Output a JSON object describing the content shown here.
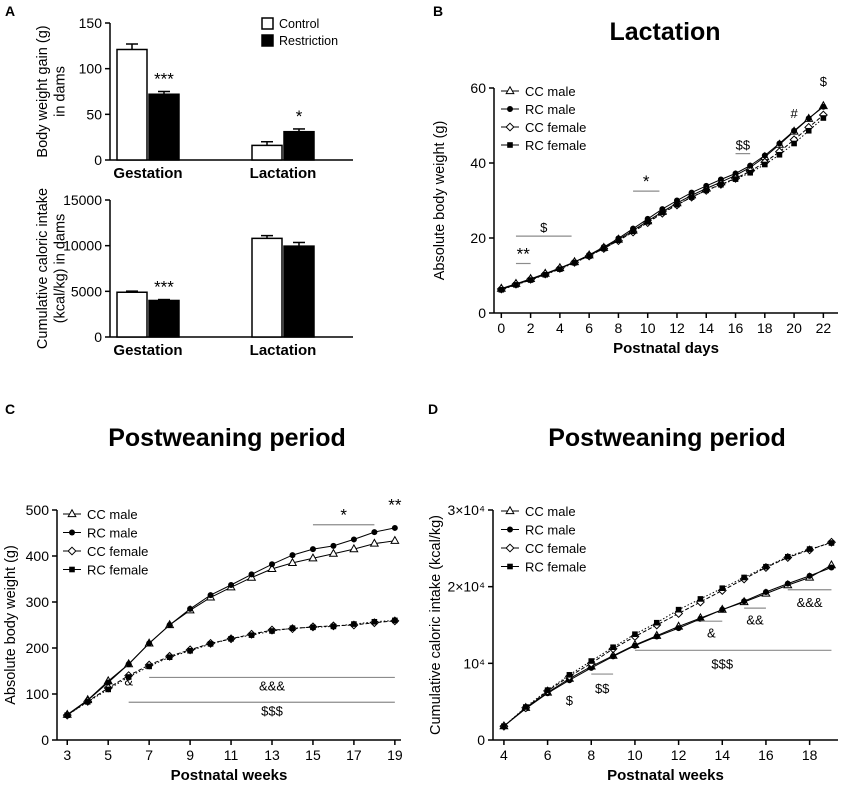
{
  "panels": {
    "a": "A",
    "b": "B",
    "c": "C",
    "d": "D"
  },
  "titles": {
    "b": "Lactation",
    "c": "Postweaning period",
    "d": "Postweaning period"
  },
  "colors": {
    "axis": "#000000",
    "fill_control": "#ffffff",
    "fill_restriction": "#000000",
    "sig_line": "#8c8c8c"
  },
  "chart_data": [
    {
      "id": "a_top",
      "type": "bar",
      "categories": [
        "Gestation",
        "Lactation"
      ],
      "series": [
        {
          "name": "Control",
          "values": [
            121,
            16
          ],
          "errors": [
            6,
            4
          ]
        },
        {
          "name": "Restriction",
          "values": [
            72,
            31
          ],
          "errors": [
            3,
            3
          ]
        }
      ],
      "ylabel": "Body weight gain (g)",
      "ylabel2": "in dams",
      "ylim": [
        0,
        150
      ],
      "yticks": [
        "0",
        "50",
        "100",
        "150"
      ],
      "annotations": [
        {
          "category": 0,
          "series": 1,
          "text": "***"
        },
        {
          "category": 1,
          "series": 1,
          "text": "*"
        }
      ],
      "legend": [
        "Control",
        "Restriction"
      ],
      "legend_position": "top-right"
    },
    {
      "id": "a_bottom",
      "type": "bar",
      "categories": [
        "Gestation",
        "Lactation"
      ],
      "series": [
        {
          "name": "Control",
          "values": [
            4900,
            10800
          ],
          "errors": [
            120,
            300
          ]
        },
        {
          "name": "Restriction",
          "values": [
            4000,
            9950
          ],
          "errors": [
            100,
            400
          ]
        }
      ],
      "ylabel": "Cumulative caloric intake",
      "ylabel2": "(kcal/kg) in dams",
      "ylim": [
        0,
        15000
      ],
      "yticks": [
        "0",
        "5000",
        "10000",
        "15000"
      ],
      "annotations": [
        {
          "category": 0,
          "series": 1,
          "text": "***"
        }
      ]
    },
    {
      "id": "b",
      "type": "line",
      "title": "Lactation",
      "xlabel": "Postnatal days",
      "ylabel": "Absolute body weight (g)",
      "xlim": [
        -0.5,
        23
      ],
      "ylim": [
        0,
        60
      ],
      "xticks": [
        "0",
        "2",
        "4",
        "6",
        "8",
        "10",
        "12",
        "14",
        "16",
        "18",
        "20",
        "22"
      ],
      "yticks": [
        "0",
        "20",
        "40",
        "60"
      ],
      "x": [
        0,
        1,
        2,
        3,
        4,
        5,
        6,
        7,
        8,
        9,
        10,
        11,
        12,
        13,
        14,
        15,
        16,
        17,
        18,
        19,
        20,
        21,
        22
      ],
      "series": [
        {
          "name": "CC male",
          "marker": "triangle-open",
          "dash": "solid",
          "values": [
            6.5,
            7.8,
            9.1,
            10.5,
            12.0,
            13.6,
            15.4,
            17.4,
            19.6,
            22.0,
            24.5,
            27.0,
            29.3,
            31.4,
            33.2,
            34.9,
            36.7,
            38.8,
            41.6,
            44.9,
            48.4,
            51.8,
            55.2
          ]
        },
        {
          "name": "RC male",
          "marker": "circle-filled",
          "dash": "solid",
          "values": [
            6.3,
            7.6,
            8.9,
            10.3,
            11.9,
            13.6,
            15.5,
            17.6,
            19.9,
            22.5,
            25.1,
            27.7,
            30.0,
            32.1,
            33.9,
            35.6,
            37.2,
            39.3,
            42.0,
            45.2,
            48.6,
            51.9,
            55.0
          ]
        },
        {
          "name": "CC female",
          "marker": "diamond-open",
          "dash": "dashed",
          "values": [
            6.4,
            7.7,
            9.0,
            10.4,
            11.9,
            13.5,
            15.2,
            17.2,
            19.3,
            21.6,
            24.1,
            26.6,
            28.8,
            30.9,
            32.7,
            34.3,
            35.9,
            37.8,
            40.2,
            43.0,
            46.2,
            49.5,
            52.8
          ]
        },
        {
          "name": "RC female",
          "marker": "square-filled",
          "dash": "dotted",
          "values": [
            6.2,
            7.5,
            8.8,
            10.2,
            11.7,
            13.4,
            15.2,
            17.2,
            19.4,
            21.8,
            24.3,
            26.8,
            28.9,
            30.9,
            32.7,
            34.2,
            35.7,
            37.4,
            39.6,
            42.2,
            45.2,
            48.6,
            52.0
          ]
        }
      ],
      "annotations": [
        {
          "text": "**",
          "x1": 1,
          "x2": 2,
          "y": 13.2
        },
        {
          "text": "$",
          "x1": 1,
          "x2": 4.8,
          "y": 20.5
        },
        {
          "text": "*",
          "x1": 9,
          "x2": 10.8,
          "y": 32.5
        },
        {
          "text": "$$",
          "x1": 16,
          "x2": 17,
          "y": 42.5
        },
        {
          "text": "#",
          "x1": 20,
          "x2": 20,
          "y": 51,
          "noline": true
        },
        {
          "text": "$",
          "x1": 22,
          "x2": 22,
          "y": 59.5,
          "noline": true
        }
      ],
      "legend": [
        "CC male",
        "RC male",
        "CC female",
        "RC female"
      ],
      "legend_position": "top-left"
    },
    {
      "id": "c",
      "type": "line",
      "title": "Postweaning period",
      "xlabel": "Postnatal weeks",
      "ylabel": "Absolute body weight (g)",
      "xlim": [
        2.5,
        19.3
      ],
      "ylim": [
        0,
        500
      ],
      "xticks": [
        "3",
        "5",
        "7",
        "9",
        "11",
        "13",
        "15",
        "17",
        "19"
      ],
      "yticks": [
        "0",
        "100",
        "200",
        "300",
        "400",
        "500"
      ],
      "x": [
        3,
        4,
        5,
        6,
        7,
        8,
        9,
        10,
        11,
        12,
        13,
        14,
        15,
        16,
        17,
        18,
        19
      ],
      "series": [
        {
          "name": "CC male",
          "marker": "triangle-open",
          "dash": "solid",
          "values": [
            55,
            87,
            128,
            165,
            210,
            250,
            282,
            310,
            332,
            353,
            372,
            385,
            395,
            405,
            415,
            427,
            433
          ]
        },
        {
          "name": "RC male",
          "marker": "circle-filled",
          "dash": "solid",
          "values": [
            54,
            86,
            125,
            165,
            210,
            250,
            285,
            315,
            337,
            360,
            382,
            402,
            415,
            422,
            436,
            452,
            461
          ]
        },
        {
          "name": "CC female",
          "marker": "diamond-open",
          "dash": "dashed",
          "values": [
            54,
            84,
            113,
            140,
            163,
            182,
            196,
            210,
            220,
            230,
            239,
            242,
            246,
            248,
            250,
            255,
            259
          ]
        },
        {
          "name": "RC female",
          "marker": "square-filled",
          "dash": "dotted",
          "values": [
            54,
            83,
            110,
            137,
            160,
            180,
            194,
            209,
            220,
            228,
            237,
            243,
            245,
            247,
            252,
            257,
            260
          ]
        }
      ],
      "annotations": [
        {
          "text": "*",
          "x1": 15,
          "x2": 18,
          "y": 468
        },
        {
          "text": "**",
          "x1": 19,
          "x2": 19,
          "y": 490,
          "noline": true
        },
        {
          "text": "&",
          "x1": 6,
          "x2": 6,
          "y": 110,
          "noline": true
        },
        {
          "text": "&&&",
          "x1": 7,
          "x2": 19,
          "y": 136,
          "label_x": 13,
          "label_y": 118
        },
        {
          "text": "$$$",
          "x1": 6,
          "x2": 19,
          "y": 82,
          "label_x": 13,
          "label_y": 64
        }
      ],
      "legend": [
        "CC male",
        "RC male",
        "CC female",
        "RC female"
      ],
      "legend_position": "top-left"
    },
    {
      "id": "d",
      "type": "line",
      "title": "Postweaning period",
      "xlabel": "Postnatal weeks",
      "ylabel": "Cumulative caloric intake (kcal/kg)",
      "xlim": [
        3.5,
        19.3
      ],
      "ylim": [
        0,
        30000
      ],
      "xticks": [
        "4",
        "6",
        "8",
        "10",
        "12",
        "14",
        "16",
        "18"
      ],
      "yticks": [
        "0",
        "10⁴",
        "2×10⁴",
        "3×10⁴"
      ],
      "x": [
        4,
        5,
        6,
        7,
        8,
        9,
        10,
        11,
        12,
        13,
        14,
        15,
        16,
        17,
        18,
        19
      ],
      "series": [
        {
          "name": "CC male",
          "marker": "triangle-open",
          "dash": "solid",
          "values": [
            1800,
            4200,
            6200,
            8000,
            9600,
            11000,
            12400,
            13600,
            14800,
            15900,
            17000,
            18000,
            19100,
            20200,
            21200,
            22800
          ]
        },
        {
          "name": "RC male",
          "marker": "circle-filled",
          "dash": "solid",
          "values": [
            1800,
            4100,
            6100,
            7800,
            9400,
            10900,
            12300,
            13500,
            14600,
            15800,
            17000,
            18100,
            19300,
            20400,
            21400,
            22500
          ]
        },
        {
          "name": "CC female",
          "marker": "diamond-open",
          "dash": "dashed",
          "values": [
            1800,
            4200,
            6400,
            8300,
            10000,
            11900,
            13500,
            15000,
            16500,
            18000,
            19500,
            21000,
            22500,
            23800,
            24800,
            25800
          ]
        },
        {
          "name": "RC female",
          "marker": "square-filled",
          "dash": "dotted",
          "values": [
            1800,
            4300,
            6500,
            8500,
            10300,
            12100,
            13800,
            15300,
            17000,
            18400,
            19800,
            21200,
            22600,
            23900,
            24900,
            25700
          ]
        }
      ],
      "annotations": [
        {
          "text": "$",
          "x1": 7,
          "x2": 7,
          "y": 6500,
          "label_y": 5200,
          "noline": true
        },
        {
          "text": "$$",
          "x1": 8,
          "x2": 9,
          "y": 8600,
          "label_y": 6800
        },
        {
          "text": "&",
          "x1": 13,
          "x2": 14,
          "y": 15500,
          "label_y": 14000
        },
        {
          "text": "&&",
          "x1": 15,
          "x2": 16,
          "y": 17200,
          "label_y": 15700
        },
        {
          "text": "&&&",
          "x1": 17,
          "x2": 19,
          "y": 19600,
          "label_y": 18000
        },
        {
          "text": "$$$",
          "x1": 10,
          "x2": 19,
          "y": 11700,
          "label_x": 14,
          "label_y": 10000
        }
      ],
      "legend": [
        "CC male",
        "RC male",
        "CC female",
        "RC female"
      ],
      "legend_position": "top-left"
    }
  ]
}
